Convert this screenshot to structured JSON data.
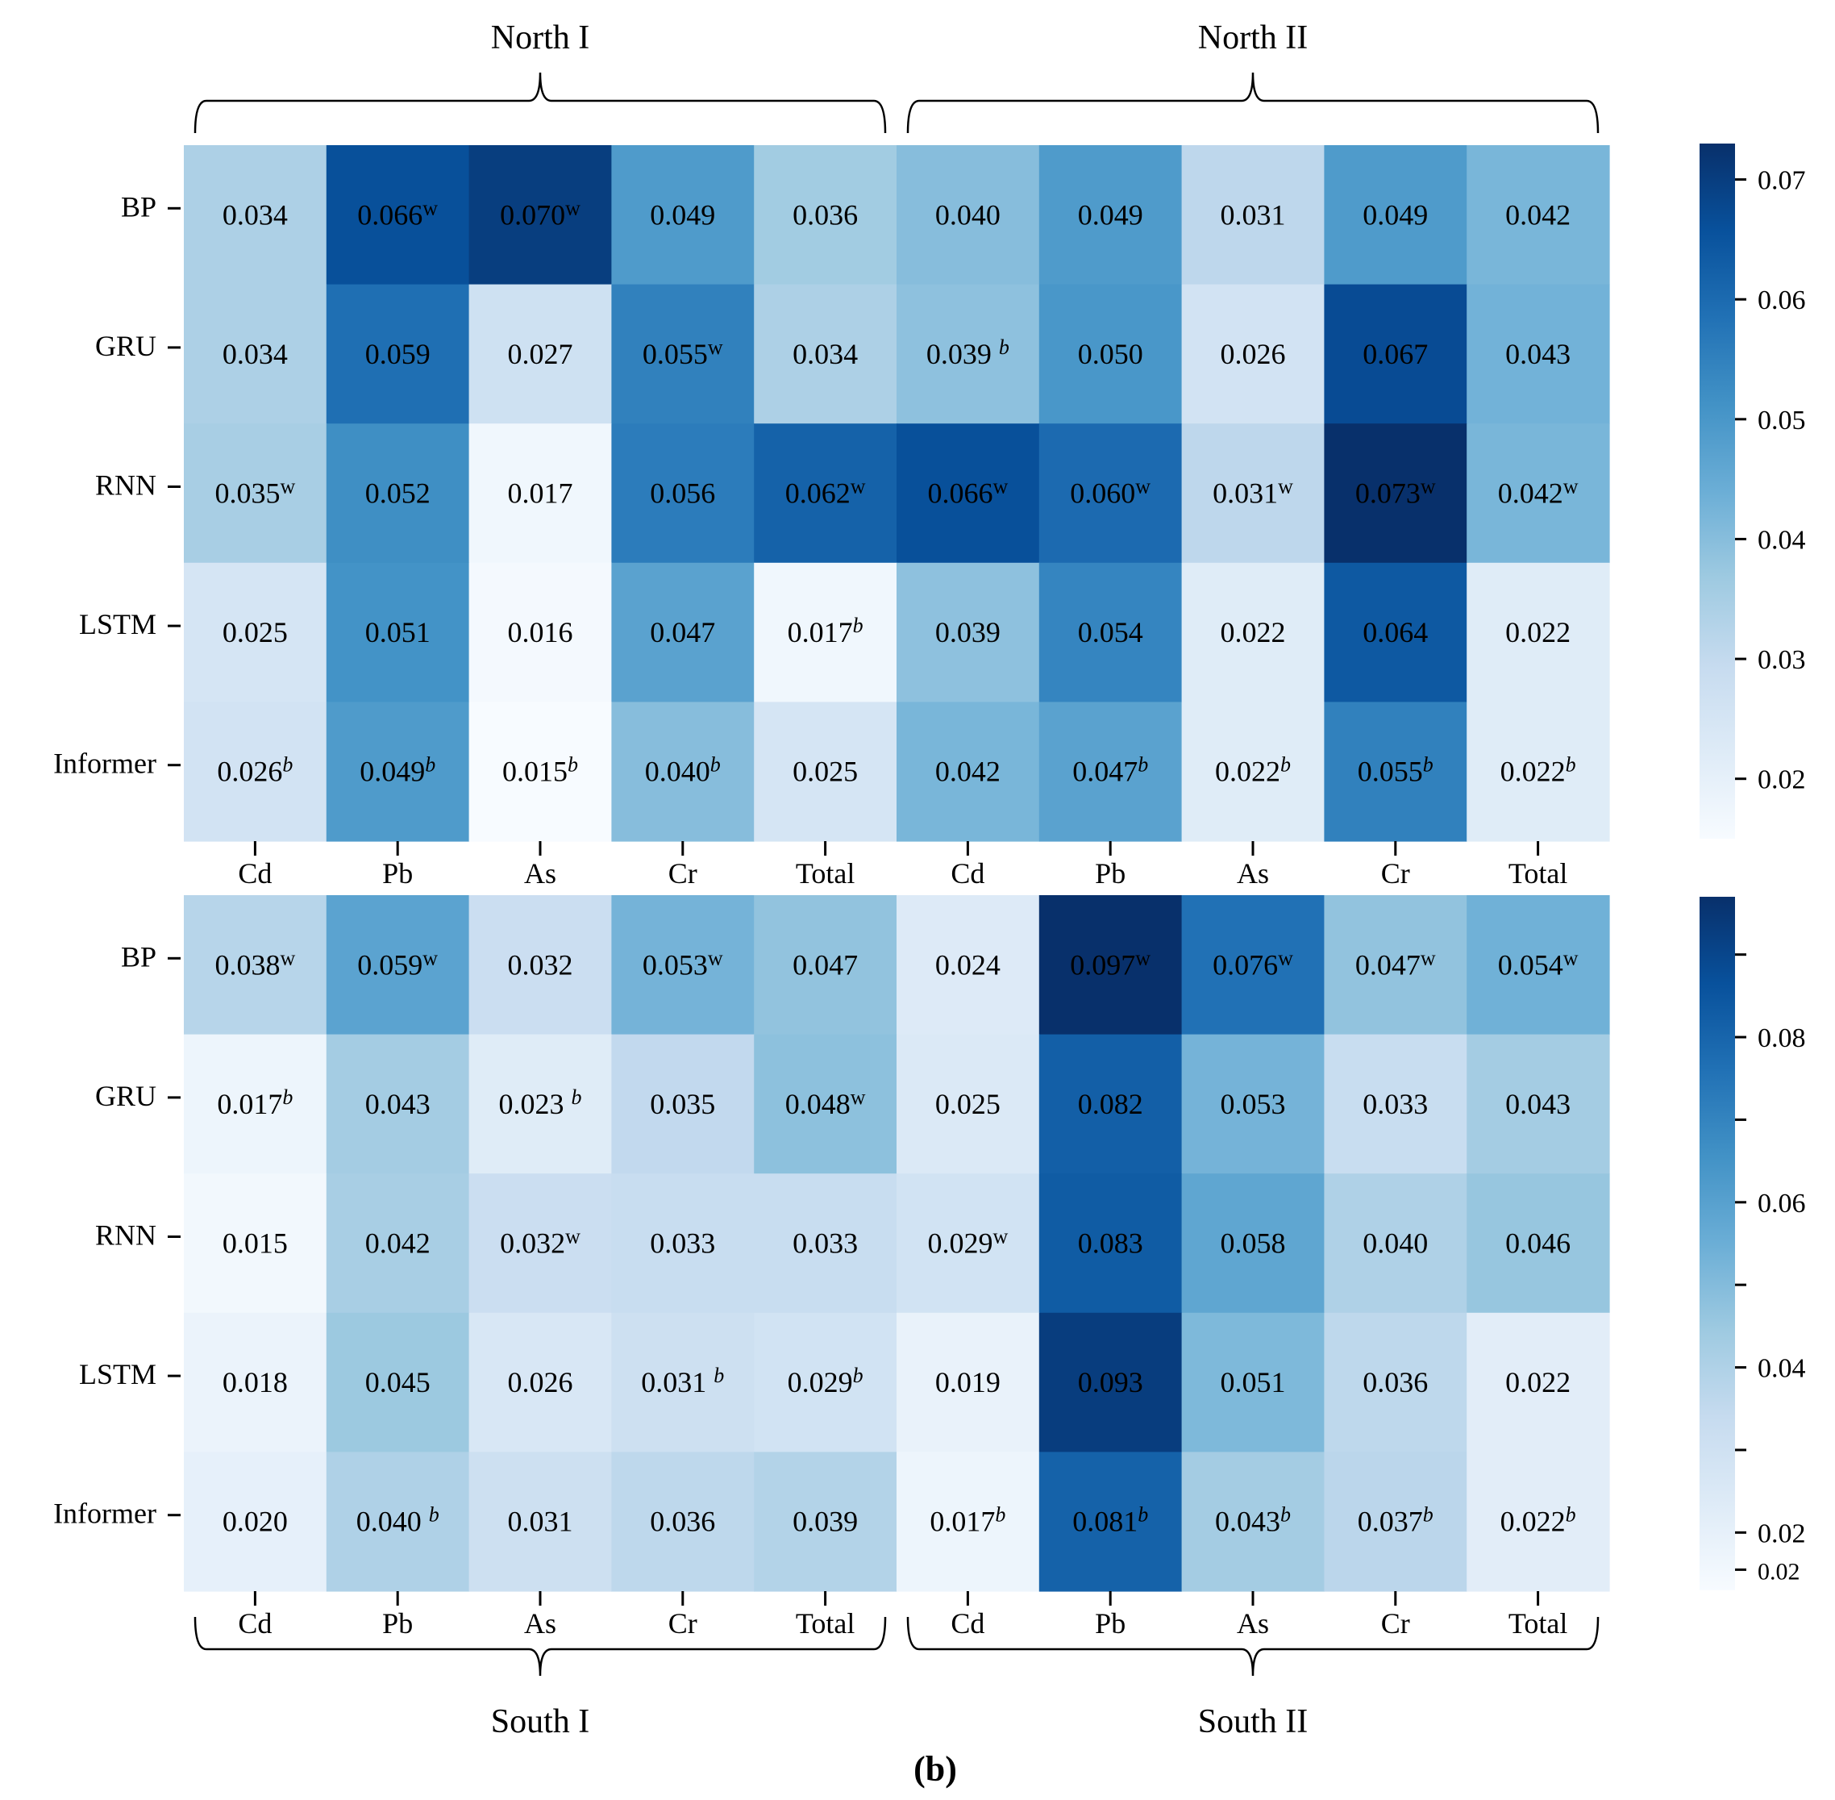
{
  "caption": "(b)",
  "colorbar_colors": [
    "#f7fbff",
    "#deebf7",
    "#c6dbef",
    "#9ecae1",
    "#6baed6",
    "#4292c6",
    "#2171b5",
    "#08519c",
    "#08306b"
  ],
  "chart_data": [
    {
      "type": "heatmap",
      "name": "top",
      "rows": [
        "BP",
        "GRU",
        "RNN",
        "LSTM",
        "Informer"
      ],
      "columns": [
        "Cd",
        "Pb",
        "As",
        "Cr",
        "Total",
        "Cd",
        "Pb",
        "As",
        "Cr",
        "Total"
      ],
      "groups": [
        {
          "label": "North I",
          "columns": [
            0,
            4
          ]
        },
        {
          "label": "North II",
          "columns": [
            5,
            9
          ]
        }
      ],
      "values": [
        [
          0.034,
          0.066,
          0.07,
          0.049,
          0.036,
          0.04,
          0.049,
          0.031,
          0.049,
          0.042
        ],
        [
          0.034,
          0.059,
          0.027,
          0.055,
          0.034,
          0.039,
          0.05,
          0.026,
          0.067,
          0.043
        ],
        [
          0.035,
          0.052,
          0.017,
          0.056,
          0.062,
          0.066,
          0.06,
          0.031,
          0.073,
          0.042
        ],
        [
          0.025,
          0.051,
          0.016,
          0.047,
          0.017,
          0.039,
          0.054,
          0.022,
          0.064,
          0.022
        ],
        [
          0.026,
          0.049,
          0.015,
          0.04,
          0.025,
          0.042,
          0.047,
          0.022,
          0.055,
          0.022
        ]
      ],
      "labels": [
        [
          "0.034",
          "0.066",
          "0.070",
          "0.049",
          "0.036",
          "0.040",
          "0.049",
          "0.031",
          "0.049",
          "0.042"
        ],
        [
          "0.034",
          "0.059",
          "0.027",
          "0.055",
          "0.034",
          "0.039 ",
          "0.050",
          "0.026",
          "0.067",
          "0.043"
        ],
        [
          "0.035",
          "0.052",
          "0.017",
          "0.056",
          "0.062",
          "0.066",
          "0.060",
          "0.031",
          "0.073",
          "0.042"
        ],
        [
          "0.025",
          "0.051",
          "0.016",
          "0.047",
          "0.017",
          "0.039",
          "0.054",
          "0.022",
          "0.064",
          "0.022"
        ],
        [
          "0.026",
          "0.049",
          "0.015",
          "0.040",
          "0.025",
          "0.042",
          "0.047",
          "0.022",
          "0.055",
          "0.022"
        ]
      ],
      "marks": [
        [
          "",
          "w",
          "w",
          "",
          "",
          "",
          "",
          "",
          "",
          ""
        ],
        [
          "",
          "",
          "",
          "w",
          "",
          "b",
          "",
          "",
          "",
          ""
        ],
        [
          "w",
          "",
          "",
          "",
          "w",
          "w",
          "w",
          "w",
          "w",
          "w"
        ],
        [
          "",
          "",
          "",
          "",
          "b",
          "",
          "",
          "",
          "",
          ""
        ],
        [
          "b",
          "b",
          "b",
          "b",
          "",
          "",
          "b",
          "b",
          "b",
          "b"
        ]
      ],
      "color_range": [
        0.015,
        0.073
      ],
      "colorbar_ticks": [
        {
          "value": 0.07,
          "label": "0.07"
        },
        {
          "value": 0.06,
          "label": "0.06"
        },
        {
          "value": 0.05,
          "label": "0.05"
        },
        {
          "value": 0.04,
          "label": "0.04"
        },
        {
          "value": 0.03,
          "label": "0.03"
        },
        {
          "value": 0.02,
          "label": "0.02"
        }
      ]
    },
    {
      "type": "heatmap",
      "name": "bottom",
      "rows": [
        "BP",
        "GRU",
        "RNN",
        "LSTM",
        "Informer"
      ],
      "columns": [
        "Cd",
        "Pb",
        "As",
        "Cr",
        "Total",
        "Cd",
        "Pb",
        "As",
        "Cr",
        "Total"
      ],
      "groups": [
        {
          "label": "South I",
          "columns": [
            0,
            4
          ]
        },
        {
          "label": "South II",
          "columns": [
            5,
            9
          ]
        }
      ],
      "values": [
        [
          0.038,
          0.059,
          0.032,
          0.053,
          0.047,
          0.024,
          0.097,
          0.076,
          0.047,
          0.054
        ],
        [
          0.017,
          0.043,
          0.023,
          0.035,
          0.048,
          0.025,
          0.082,
          0.053,
          0.033,
          0.043
        ],
        [
          0.015,
          0.042,
          0.032,
          0.033,
          0.033,
          0.029,
          0.083,
          0.058,
          0.04,
          0.046
        ],
        [
          0.018,
          0.045,
          0.026,
          0.031,
          0.029,
          0.019,
          0.093,
          0.051,
          0.036,
          0.022
        ],
        [
          0.02,
          0.04,
          0.031,
          0.036,
          0.039,
          0.017,
          0.081,
          0.043,
          0.037,
          0.022
        ]
      ],
      "labels": [
        [
          "0.038",
          "0.059",
          "0.032",
          "0.053",
          "0.047",
          "0.024",
          "0.097",
          "0.076",
          "0.047",
          "0.054"
        ],
        [
          "0.017",
          "0.043",
          "0.023 ",
          "0.035",
          "0.048",
          "0.025",
          "0.082",
          "0.053",
          "0.033",
          "0.043"
        ],
        [
          "0.015",
          "0.042",
          "0.032",
          "0.033",
          "0.033",
          "0.029",
          "0.083",
          "0.058",
          "0.040",
          "0.046"
        ],
        [
          "0.018",
          "0.045",
          "0.026",
          "0.031 ",
          "0.029",
          "0.019",
          "0.093",
          "0.051",
          "0.036",
          "0.022"
        ],
        [
          "0.020",
          "0.040 ",
          "0.031",
          "0.036",
          "0.039",
          "0.017",
          "0.081",
          "0.043",
          "0.037",
          "0.022"
        ]
      ],
      "marks": [
        [
          "w",
          "w",
          "",
          "w",
          "",
          "",
          "w",
          "w",
          "w",
          "w"
        ],
        [
          "b",
          "",
          "b",
          "",
          "w",
          "",
          "",
          "",
          "",
          ""
        ],
        [
          "",
          "",
          "w",
          "",
          "",
          "w",
          "",
          "",
          "",
          ""
        ],
        [
          "",
          "",
          "",
          "b",
          "b",
          "",
          "",
          "",
          "",
          ""
        ],
        [
          "",
          "b",
          "",
          "",
          "",
          "b",
          "b",
          "b",
          "b",
          "b"
        ]
      ],
      "color_range": [
        0.013,
        0.097
      ],
      "colorbar_ticks": [
        {
          "value": 0.08,
          "label": "0.08"
        },
        {
          "value": 0.06,
          "label": "0.06"
        },
        {
          "value": 0.04,
          "label": "0.04"
        },
        {
          "value": 0.02,
          "label": "0.02"
        },
        {
          "value": 0.0155,
          "label": "0.02",
          "small": true
        }
      ],
      "colorbar_minor_ticks": [
        0.09,
        0.07,
        0.05,
        0.03
      ]
    }
  ]
}
